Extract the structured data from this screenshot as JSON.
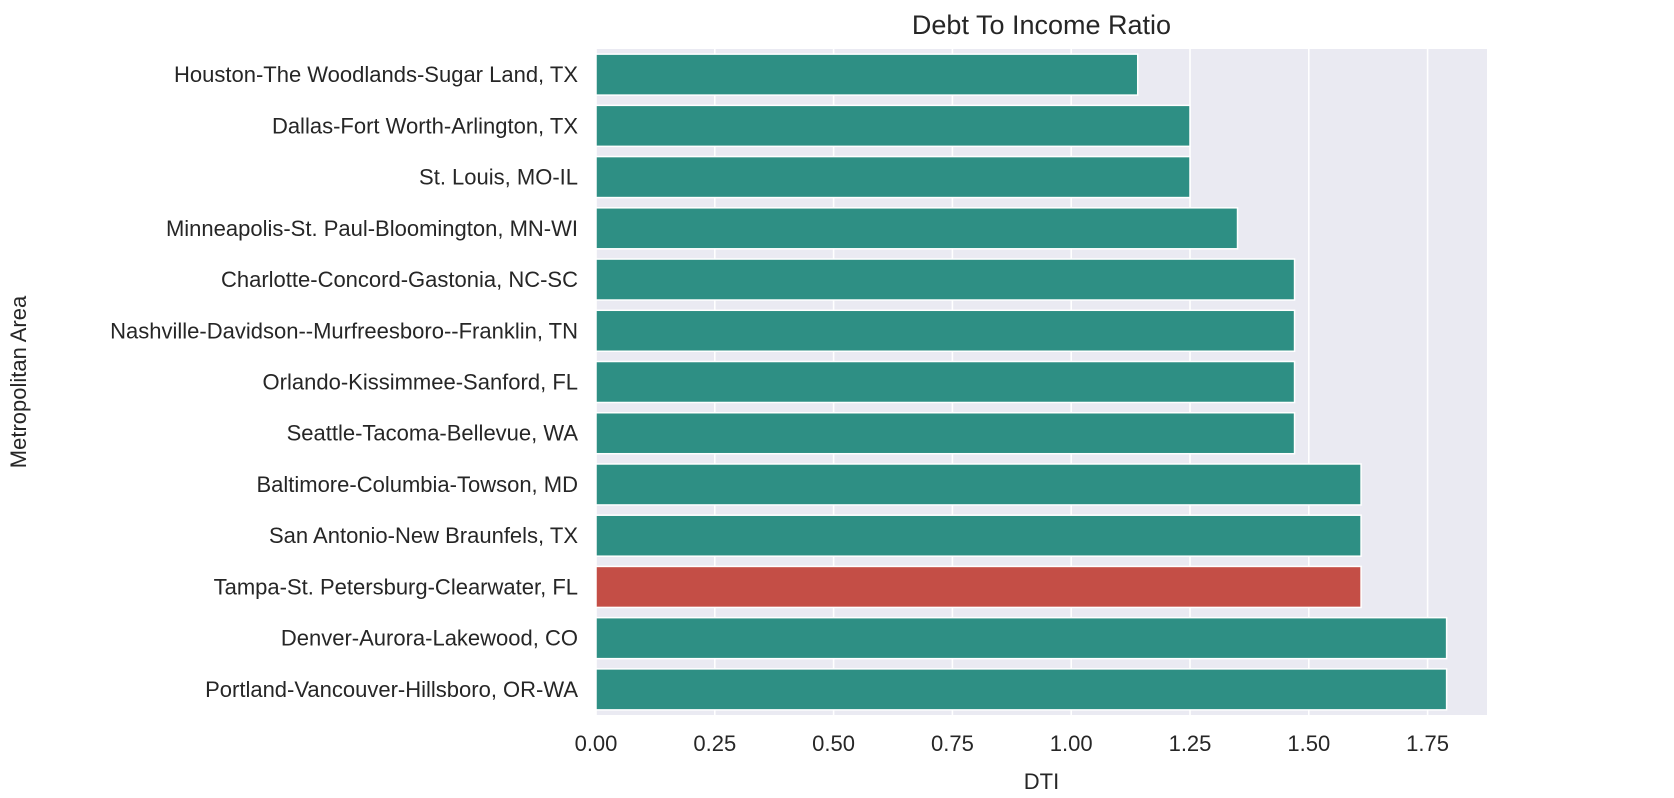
{
  "chart_data": {
    "type": "bar",
    "orientation": "horizontal",
    "title": "Debt To Income Ratio",
    "xlabel": "DTI",
    "ylabel": "Metropolitan Area",
    "xlim": [
      0,
      1.875
    ],
    "xticks": [
      "0.00",
      "0.25",
      "0.50",
      "0.75",
      "1.00",
      "1.25",
      "1.50",
      "1.75"
    ],
    "grid": true,
    "categories": [
      "Houston-The Woodlands-Sugar Land, TX",
      "Dallas-Fort Worth-Arlington, TX",
      "St. Louis, MO-IL",
      "Minneapolis-St. Paul-Bloomington, MN-WI",
      "Charlotte-Concord-Gastonia, NC-SC",
      "Nashville-Davidson--Murfreesboro--Franklin, TN",
      "Orlando-Kissimmee-Sanford, FL",
      "Seattle-Tacoma-Bellevue, WA",
      "Baltimore-Columbia-Towson, MD",
      "San Antonio-New Braunfels, TX",
      "Tampa-St. Petersburg-Clearwater, FL",
      "Denver-Aurora-Lakewood, CO",
      "Portland-Vancouver-Hillsboro, OR-WA"
    ],
    "values": [
      1.14,
      1.25,
      1.25,
      1.35,
      1.47,
      1.47,
      1.47,
      1.47,
      1.61,
      1.61,
      1.61,
      1.79,
      1.79
    ],
    "highlight_index": 10,
    "colors": {
      "bar": "#2e8f84",
      "highlight": "#c44e46",
      "plot_background": "#eaeaf2"
    }
  }
}
